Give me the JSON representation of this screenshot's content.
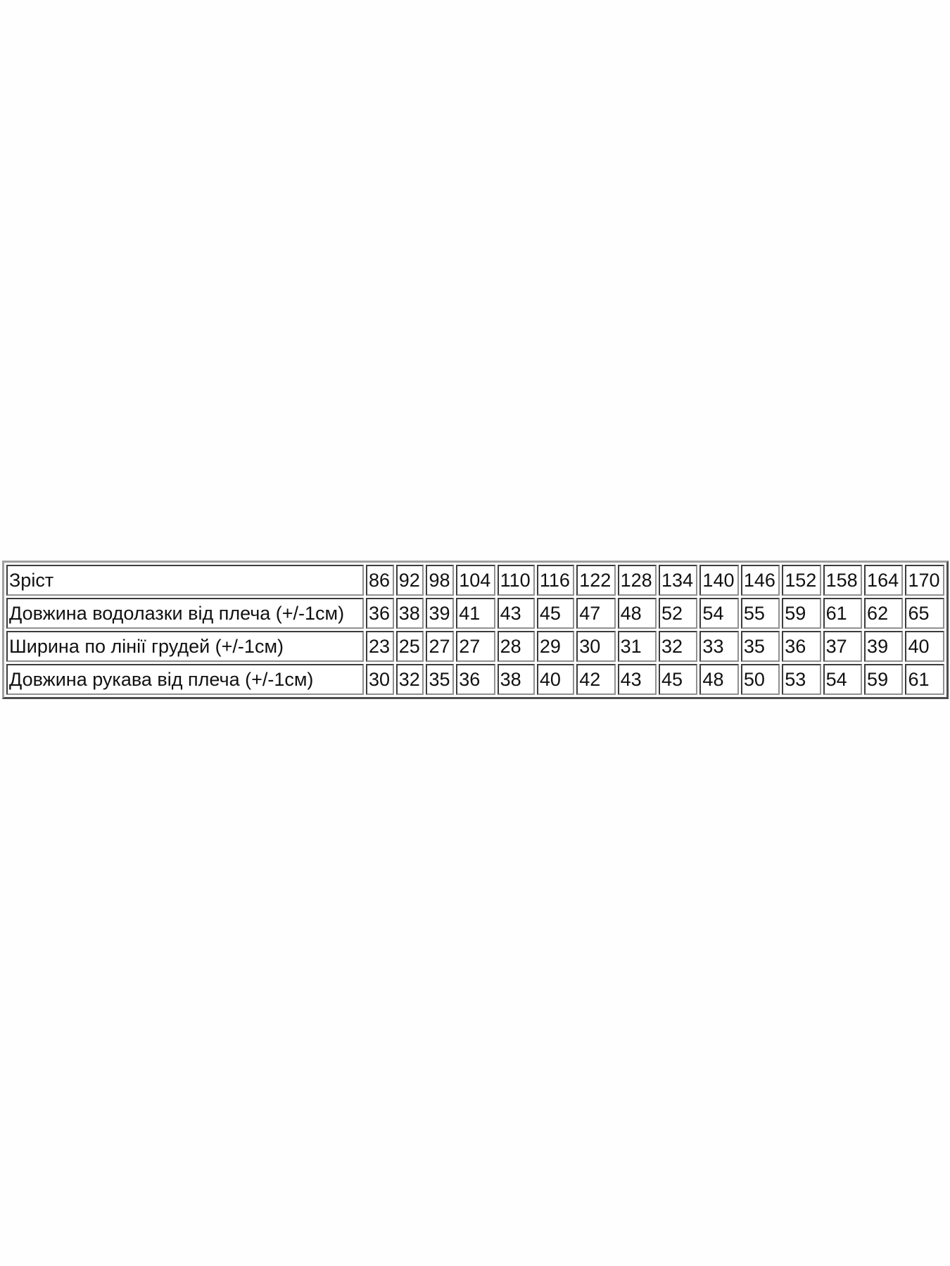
{
  "table": {
    "rows": [
      {
        "label": "Зріст",
        "values": [
          "86",
          "92",
          "98",
          "104",
          "110",
          "116",
          "122",
          "128",
          "134",
          "140",
          "146",
          "152",
          "158",
          "164",
          "170"
        ]
      },
      {
        "label": "Довжина водолазки від плеча (+/-1см)",
        "values": [
          "36",
          "38",
          "39",
          "41",
          "43",
          "45",
          "47",
          "48",
          "52",
          "54",
          "55",
          "59",
          "61",
          "62",
          "65"
        ]
      },
      {
        "label": "Ширина по лінії грудей (+/-1см)",
        "values": [
          "23",
          "25",
          "27",
          "27",
          "28",
          "29",
          "30",
          "31",
          "32",
          "33",
          "35",
          "36",
          "37",
          "39",
          "40"
        ]
      },
      {
        "label": "Довжина рукава від плеча (+/-1см)",
        "values": [
          "30",
          "32",
          "35",
          "36",
          "38",
          "40",
          "42",
          "43",
          "45",
          "48",
          "50",
          "53",
          "54",
          "59",
          "61"
        ]
      }
    ]
  }
}
